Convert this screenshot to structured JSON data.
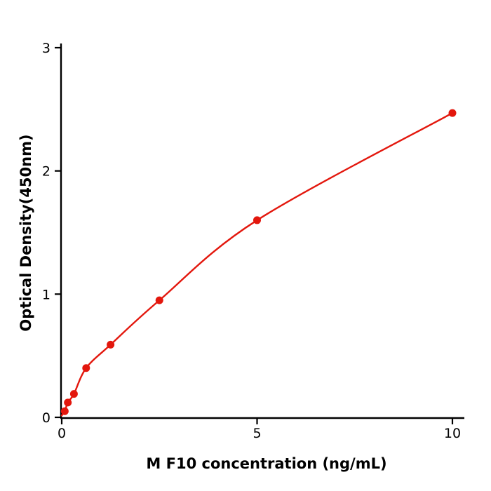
{
  "chart_data": {
    "type": "scatter",
    "title": "",
    "xlabel": "M  F10 concentration (ng/mL)",
    "ylabel": "Optical Density(450nm)",
    "x": [
      0.078,
      0.156,
      0.3125,
      0.625,
      1.25,
      2.5,
      5,
      10
    ],
    "y": [
      0.05,
      0.12,
      0.19,
      0.4,
      0.59,
      0.95,
      1.6,
      2.47
    ],
    "xticks": [
      0,
      5,
      10
    ],
    "yticks": [
      0,
      1,
      2,
      3
    ],
    "xlim": [
      0,
      10.3
    ],
    "ylim": [
      0,
      3
    ],
    "grid": false,
    "legend": null,
    "curve": "smooth saturation fit through data points starting at origin",
    "point_color": "#e3170d",
    "line_color": "#e3170d",
    "axis_color": "#000000"
  }
}
